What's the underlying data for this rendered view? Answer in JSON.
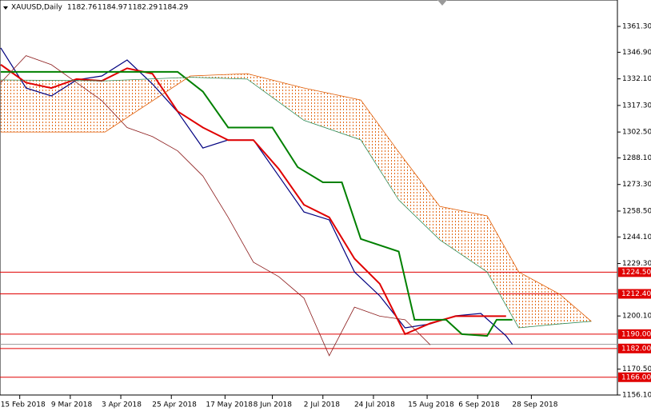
{
  "chart_data": {
    "type": "ichimoku",
    "symbol": "XAUUSD,Daily",
    "ohlc": [
      1182.76,
      1184.97,
      1182.29,
      1184.29
    ],
    "xlim": [
      0,
      195
    ],
    "ylim": [
      1156.1,
      1376.0
    ],
    "xticks": [
      {
        "value": 6,
        "label": "15 Feb 2018"
      },
      {
        "value": 22,
        "label": "9 Mar 2018"
      },
      {
        "value": 38,
        "label": "3 Apr 2018"
      },
      {
        "value": 54,
        "label": "25 Apr 2018"
      },
      {
        "value": 71,
        "label": "17 May 2018"
      },
      {
        "value": 86,
        "label": "8 Jun 2018"
      },
      {
        "value": 102,
        "label": "2 Jul 2018"
      },
      {
        "value": 118,
        "label": "24 Jul 2018"
      },
      {
        "value": 135,
        "label": "15 Aug 2018"
      },
      {
        "value": 151,
        "label": "6 Sep 2018"
      },
      {
        "value": 168,
        "label": "28 Sep 2018"
      }
    ],
    "yticks": [
      {
        "value": 1361.3,
        "label": "1361.30"
      },
      {
        "value": 1346.9,
        "label": "1346.90"
      },
      {
        "value": 1332.1,
        "label": "1332.10"
      },
      {
        "value": 1317.3,
        "label": "1317.30"
      },
      {
        "value": 1302.5,
        "label": "1302.50"
      },
      {
        "value": 1288.1,
        "label": "1288.10"
      },
      {
        "value": 1273.3,
        "label": "1273.30"
      },
      {
        "value": 1258.5,
        "label": "1258.50"
      },
      {
        "value": 1244.1,
        "label": "1244.10"
      },
      {
        "value": 1229.3,
        "label": "1229.30"
      },
      {
        "value": 1200.1,
        "label": "1200.10"
      },
      {
        "value": 1170.5,
        "label": "1170.50"
      },
      {
        "value": 1156.1,
        "label": "1156.10"
      }
    ],
    "levels": [
      {
        "value": 1224.5,
        "label": "1224.50"
      },
      {
        "value": 1212.4,
        "label": "1212.40"
      },
      {
        "value": 1190.0,
        "label": "1190.00"
      },
      {
        "value": 1182.0,
        "label": "1182.00"
      },
      {
        "value": 1166.0,
        "label": "1166.00"
      }
    ],
    "level_color": "#e00000",
    "series": [
      {
        "color": "#000080",
        "x": [
          0,
          8,
          16,
          24,
          32,
          40,
          48,
          56,
          64,
          72,
          80,
          88,
          96,
          104,
          112,
          120,
          128,
          136,
          144,
          152,
          160,
          162
        ],
        "values": [
          1349.3,
          1327.0,
          1322.6,
          1331.5,
          1333.7,
          1342.6,
          1329.3,
          1313.7,
          1293.6,
          1298.1,
          1298.1,
          1278.1,
          1258.0,
          1253.6,
          1224.6,
          1211.3,
          1193.5,
          1195.7,
          1200.2,
          1201.5,
          1189.0,
          1184.29
        ]
      },
      {
        "color": "#e00000",
        "x": [
          0,
          8,
          16,
          24,
          32,
          40,
          48,
          56,
          64,
          72,
          80,
          88,
          96,
          104,
          112,
          120,
          128,
          136,
          144,
          152,
          160
        ],
        "values": [
          1340,
          1330,
          1327,
          1332,
          1331,
          1338,
          1335,
          1314,
          1305,
          1298,
          1298,
          1282,
          1262,
          1255,
          1232,
          1218,
          1190,
          1196,
          1200,
          1200,
          1200
        ]
      },
      {
        "color": "#008000",
        "x": [
          0,
          56,
          64,
          72,
          86,
          94,
          102,
          108,
          114,
          126,
          131,
          141,
          146,
          154,
          157,
          162
        ],
        "values": [
          1336,
          1336,
          1325,
          1305,
          1305,
          1283,
          1274.5,
          1274.5,
          1243,
          1236,
          1198,
          1198,
          1190,
          1189,
          1198,
          1198
        ]
      },
      {
        "color": "#8b1a1a",
        "x": [
          0,
          8,
          16,
          24,
          32,
          40,
          48,
          56,
          64,
          72,
          80,
          88,
          96,
          104,
          112,
          120,
          128,
          136
        ],
        "values": [
          1330,
          1345,
          1340,
          1330,
          1320,
          1305,
          1300,
          1292,
          1278,
          1255,
          1230,
          1222,
          1210,
          1178,
          1205,
          1200,
          1198,
          1184
        ]
      },
      {
        "color": "#2e8b57",
        "x": [
          0,
          33,
          60,
          78,
          96,
          114,
          126,
          139,
          154,
          164,
          177,
          187
        ],
        "values": [
          1331.5,
          1331,
          1333,
          1332,
          1309,
          1298.1,
          1264.7,
          1242.5,
          1224.6,
          1193.5,
          1195.7,
          1197.1
        ]
      },
      {
        "color": "#e05a00",
        "x": [
          0,
          33,
          60,
          78,
          96,
          114,
          126,
          139,
          154,
          164,
          177,
          187
        ],
        "values": [
          1302.5,
          1302.5,
          1333.7,
          1335,
          1327,
          1320.3,
          1291.4,
          1261.1,
          1255.8,
          1224.6,
          1212.2,
          1197.1
        ]
      }
    ]
  }
}
